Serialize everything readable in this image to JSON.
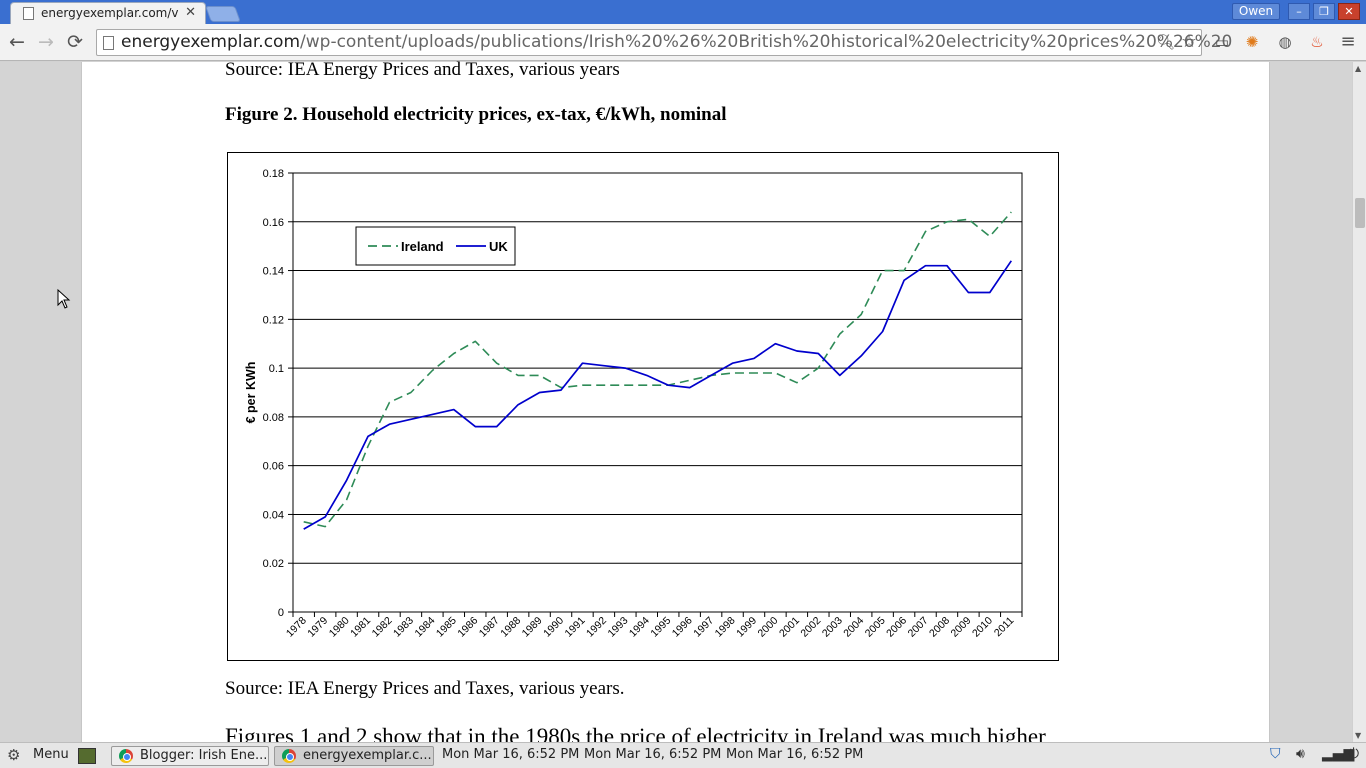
{
  "browser": {
    "tab_title": "energyexemplar.com/v",
    "tab_close": "✕",
    "user_name": "Owen",
    "url_host": "energyexemplar.com",
    "url_path": "/wp-content/uploads/publications/Irish%20%26%20British%20historical%20electricity%20prices%20%26%20",
    "nav": {
      "back": "←",
      "forward": "→",
      "reload": "⟳"
    },
    "window_buttons": {
      "minimize": "–",
      "restore": "❐",
      "close": "✕"
    }
  },
  "document": {
    "source_top": "Source: IEA Energy Prices and Taxes, various years",
    "figure_title": "Figure 2. Household electricity prices, ex-tax, €/kWh, nominal",
    "source_bottom": "Source: IEA Energy Prices and Taxes, various years.",
    "body_text": "Figures 1 and 2 show that in the 1980s the price of electricity in Ireland was much higher"
  },
  "chart_data": {
    "type": "line",
    "title": "",
    "xlabel": "",
    "ylabel": "€ per KWh",
    "ylim": [
      0,
      0.18
    ],
    "yticks": [
      "0",
      "0.02",
      "0.04",
      "0.06",
      "0.08",
      "0.1",
      "0.12",
      "0.14",
      "0.16",
      "0.18"
    ],
    "grid": true,
    "legend": "top-left",
    "categories": [
      "1978",
      "1979",
      "1980",
      "1981",
      "1982",
      "1983",
      "1984",
      "1985",
      "1986",
      "1987",
      "1988",
      "1989",
      "1990",
      "1991",
      "1992",
      "1993",
      "1994",
      "1995",
      "1996",
      "1997",
      "1998",
      "1999",
      "2000",
      "2001",
      "2002",
      "2003",
      "2004",
      "2005",
      "2006",
      "2007",
      "2008",
      "2009",
      "2010",
      "2011"
    ],
    "series": [
      {
        "name": "Ireland",
        "color": "#2e8b57",
        "dash": true,
        "values": [
          0.037,
          0.035,
          0.046,
          0.068,
          0.086,
          0.09,
          0.099,
          0.106,
          0.111,
          0.102,
          0.097,
          0.097,
          0.092,
          0.093,
          0.093,
          0.093,
          0.093,
          0.093,
          0.095,
          0.097,
          0.098,
          0.098,
          0.098,
          0.094,
          0.1,
          0.114,
          0.122,
          0.14,
          0.14,
          0.156,
          0.16,
          0.161,
          0.154,
          0.164
        ]
      },
      {
        "name": "UK",
        "color": "#0000cc",
        "dash": false,
        "values": [
          0.034,
          0.039,
          0.054,
          0.072,
          0.077,
          0.079,
          0.081,
          0.083,
          0.076,
          0.076,
          0.085,
          0.09,
          0.091,
          0.102,
          0.101,
          0.1,
          0.097,
          0.093,
          0.092,
          0.097,
          0.102,
          0.104,
          0.11,
          0.107,
          0.106,
          0.097,
          0.105,
          0.115,
          0.136,
          0.142,
          0.142,
          0.131,
          0.131,
          0.144
        ]
      }
    ]
  },
  "taskbar": {
    "menu": "Menu",
    "task1": "Blogger: Irish Ene...",
    "task2": "energyexemplar.c...",
    "clock1": "Mon Mar 16,  6:52 PM",
    "clock2": "Mon Mar 16,  6:52 PM",
    "clock3": "Mon Mar 16,  6:52 PM"
  }
}
